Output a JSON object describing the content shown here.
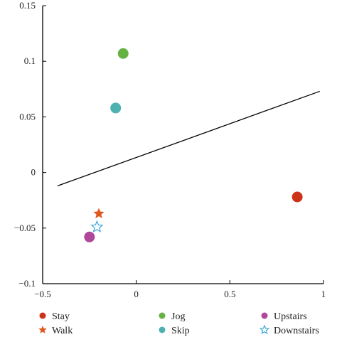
{
  "chart_data": {
    "type": "scatter",
    "title": "",
    "xlabel": "",
    "ylabel": "",
    "xlim": [
      -0.5,
      1
    ],
    "ylim": [
      -0.1,
      0.15
    ],
    "x_ticks": [
      -0.5,
      0,
      0.5,
      1
    ],
    "x_tick_labels": [
      "−0.5",
      "0",
      "0.5",
      "1"
    ],
    "y_ticks": [
      -0.1,
      -0.05,
      0,
      0.05,
      0.1,
      0.15
    ],
    "y_tick_labels": [
      "−0.1",
      "−0.05",
      "0",
      "0.05",
      "0.1",
      "0.15"
    ],
    "grid": false,
    "legend_position": "bottom",
    "series": [
      {
        "name": "Stay",
        "marker": "circle",
        "color": "#cc3318",
        "points": [
          {
            "x": 0.86,
            "y": -0.022
          }
        ]
      },
      {
        "name": "Walk",
        "marker": "star-filled",
        "color": "#e0581e",
        "points": [
          {
            "x": -0.2,
            "y": -0.037
          }
        ]
      },
      {
        "name": "Jog",
        "marker": "circle",
        "color": "#66b245",
        "points": [
          {
            "x": -0.07,
            "y": 0.107
          }
        ]
      },
      {
        "name": "Skip",
        "marker": "circle",
        "color": "#4fb0b0",
        "points": [
          {
            "x": -0.11,
            "y": 0.058
          }
        ]
      },
      {
        "name": "Upstairs",
        "marker": "circle",
        "color": "#b0479b",
        "points": [
          {
            "x": -0.25,
            "y": -0.058
          }
        ]
      },
      {
        "name": "Downstairs",
        "marker": "star-open",
        "color": "#3aa6da",
        "points": [
          {
            "x": -0.21,
            "y": -0.049
          }
        ]
      }
    ],
    "line": {
      "color": "#000000",
      "points": [
        {
          "x": -0.42,
          "y": -0.012
        },
        {
          "x": 0.98,
          "y": 0.073
        }
      ]
    }
  }
}
